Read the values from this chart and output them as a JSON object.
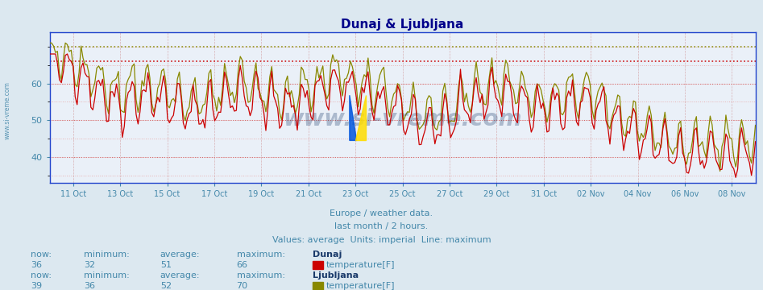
{
  "title": "Dunaj & Ljubljana",
  "title_color": "#00008b",
  "title_fontsize": 11,
  "bg_color": "#dce8f0",
  "plot_bg_color": "#eaf0f8",
  "axis_color": "#2244cc",
  "tick_color": "#4488aa",
  "grid_h_color": "#cc4444",
  "grid_h_minor_color": "#e8aaaa",
  "vgrid_color": "#cc8888",
  "ylim": [
    33,
    74
  ],
  "yticks": [
    40,
    50,
    60
  ],
  "hline_dunaj_max": 66,
  "hline_dunaj_max_color": "#cc0000",
  "hline_ljubl_max": 70,
  "hline_ljubl_max_color": "#888800",
  "dunaj_color": "#cc0000",
  "ljubl_color": "#888800",
  "watermark": "www.si-vreme.com",
  "subtitle1": "Europe / weather data.",
  "subtitle2": "last month / 2 hours.",
  "subtitle3": "Values: average  Units: imperial  Line: maximum",
  "subtitle_color": "#4488aa",
  "footer_label_color": "#4488aa",
  "footer_value_color": "#4488aa",
  "footer_name_color": "#1a3a6a",
  "dunaj_now": 36,
  "dunaj_min": 32,
  "dunaj_avg": 51,
  "dunaj_max": 66,
  "ljubl_now": 39,
  "ljubl_min": 36,
  "ljubl_avg": 52,
  "ljubl_max": 70,
  "tick_dates": [
    "11 Oct",
    "13 Oct",
    "15 Oct",
    "17 Oct",
    "19 Oct",
    "21 Oct",
    "23 Oct",
    "25 Oct",
    "27 Oct",
    "29 Oct",
    "31 Oct",
    "02 Nov",
    "04 Nov",
    "06 Nov",
    "08 Nov"
  ]
}
